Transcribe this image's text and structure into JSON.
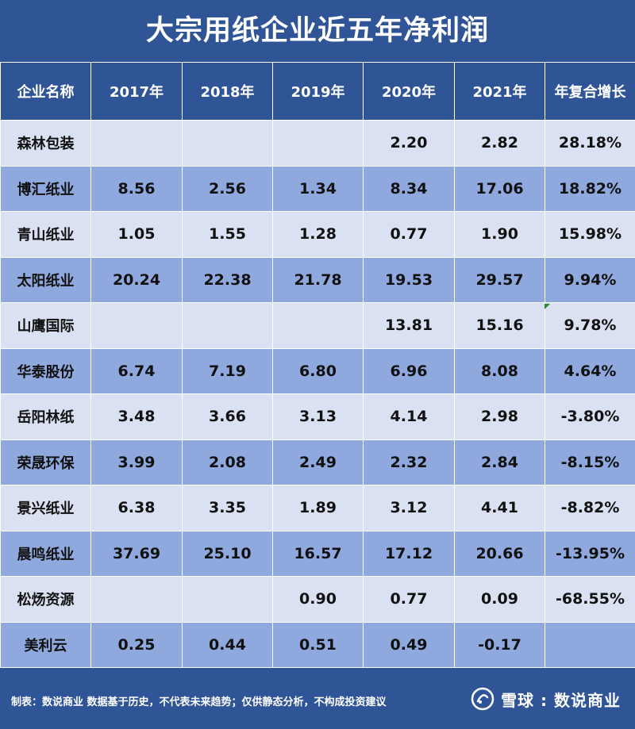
{
  "chart_data": {
    "type": "table",
    "title": "大宗用纸企业近五年净利润",
    "columns": [
      "企业名称",
      "2017年",
      "2018年",
      "2019年",
      "2020年",
      "2021年",
      "年复合增长"
    ],
    "rows": [
      [
        "森林包装",
        "",
        "",
        "",
        "2.20",
        "2.82",
        "28.18%"
      ],
      [
        "博汇纸业",
        "8.56",
        "2.56",
        "1.34",
        "8.34",
        "17.06",
        "18.82%"
      ],
      [
        "青山纸业",
        "1.05",
        "1.55",
        "1.28",
        "0.77",
        "1.90",
        "15.98%"
      ],
      [
        "太阳纸业",
        "20.24",
        "22.38",
        "21.78",
        "19.53",
        "29.57",
        "9.94%"
      ],
      [
        "山鹰国际",
        "",
        "",
        "",
        "13.81",
        "15.16",
        "9.78%"
      ],
      [
        "华泰股份",
        "6.74",
        "7.19",
        "6.80",
        "6.96",
        "8.08",
        "4.64%"
      ],
      [
        "岳阳林纸",
        "3.48",
        "3.66",
        "3.13",
        "4.14",
        "2.98",
        "-3.80%"
      ],
      [
        "荣晟环保",
        "3.99",
        "2.08",
        "2.49",
        "2.32",
        "2.84",
        "-8.15%"
      ],
      [
        "景兴纸业",
        "6.38",
        "3.35",
        "1.89",
        "3.12",
        "4.41",
        "-8.82%"
      ],
      [
        "晨鸣纸业",
        "37.69",
        "25.10",
        "16.57",
        "17.12",
        "20.66",
        "-13.95%"
      ],
      [
        "松炀资源",
        "",
        "",
        "0.90",
        "0.77",
        "0.09",
        "-68.55%"
      ],
      [
        "美利云",
        "0.25",
        "0.44",
        "0.51",
        "0.49",
        "-0.17",
        ""
      ]
    ]
  },
  "footer": {
    "note": "制表：数说商业 数据基于历史，不代表未来趋势；仅供静态分析，不构成投资建议",
    "brand": "雪球 : 数说商业"
  },
  "colors": {
    "header_bg": "#2f5597",
    "row_light": "#dae1f2",
    "row_dark": "#8fa8de",
    "marker": "#2e8b2e"
  },
  "icons": {
    "logo": "xueqiu-snowball-icon"
  }
}
